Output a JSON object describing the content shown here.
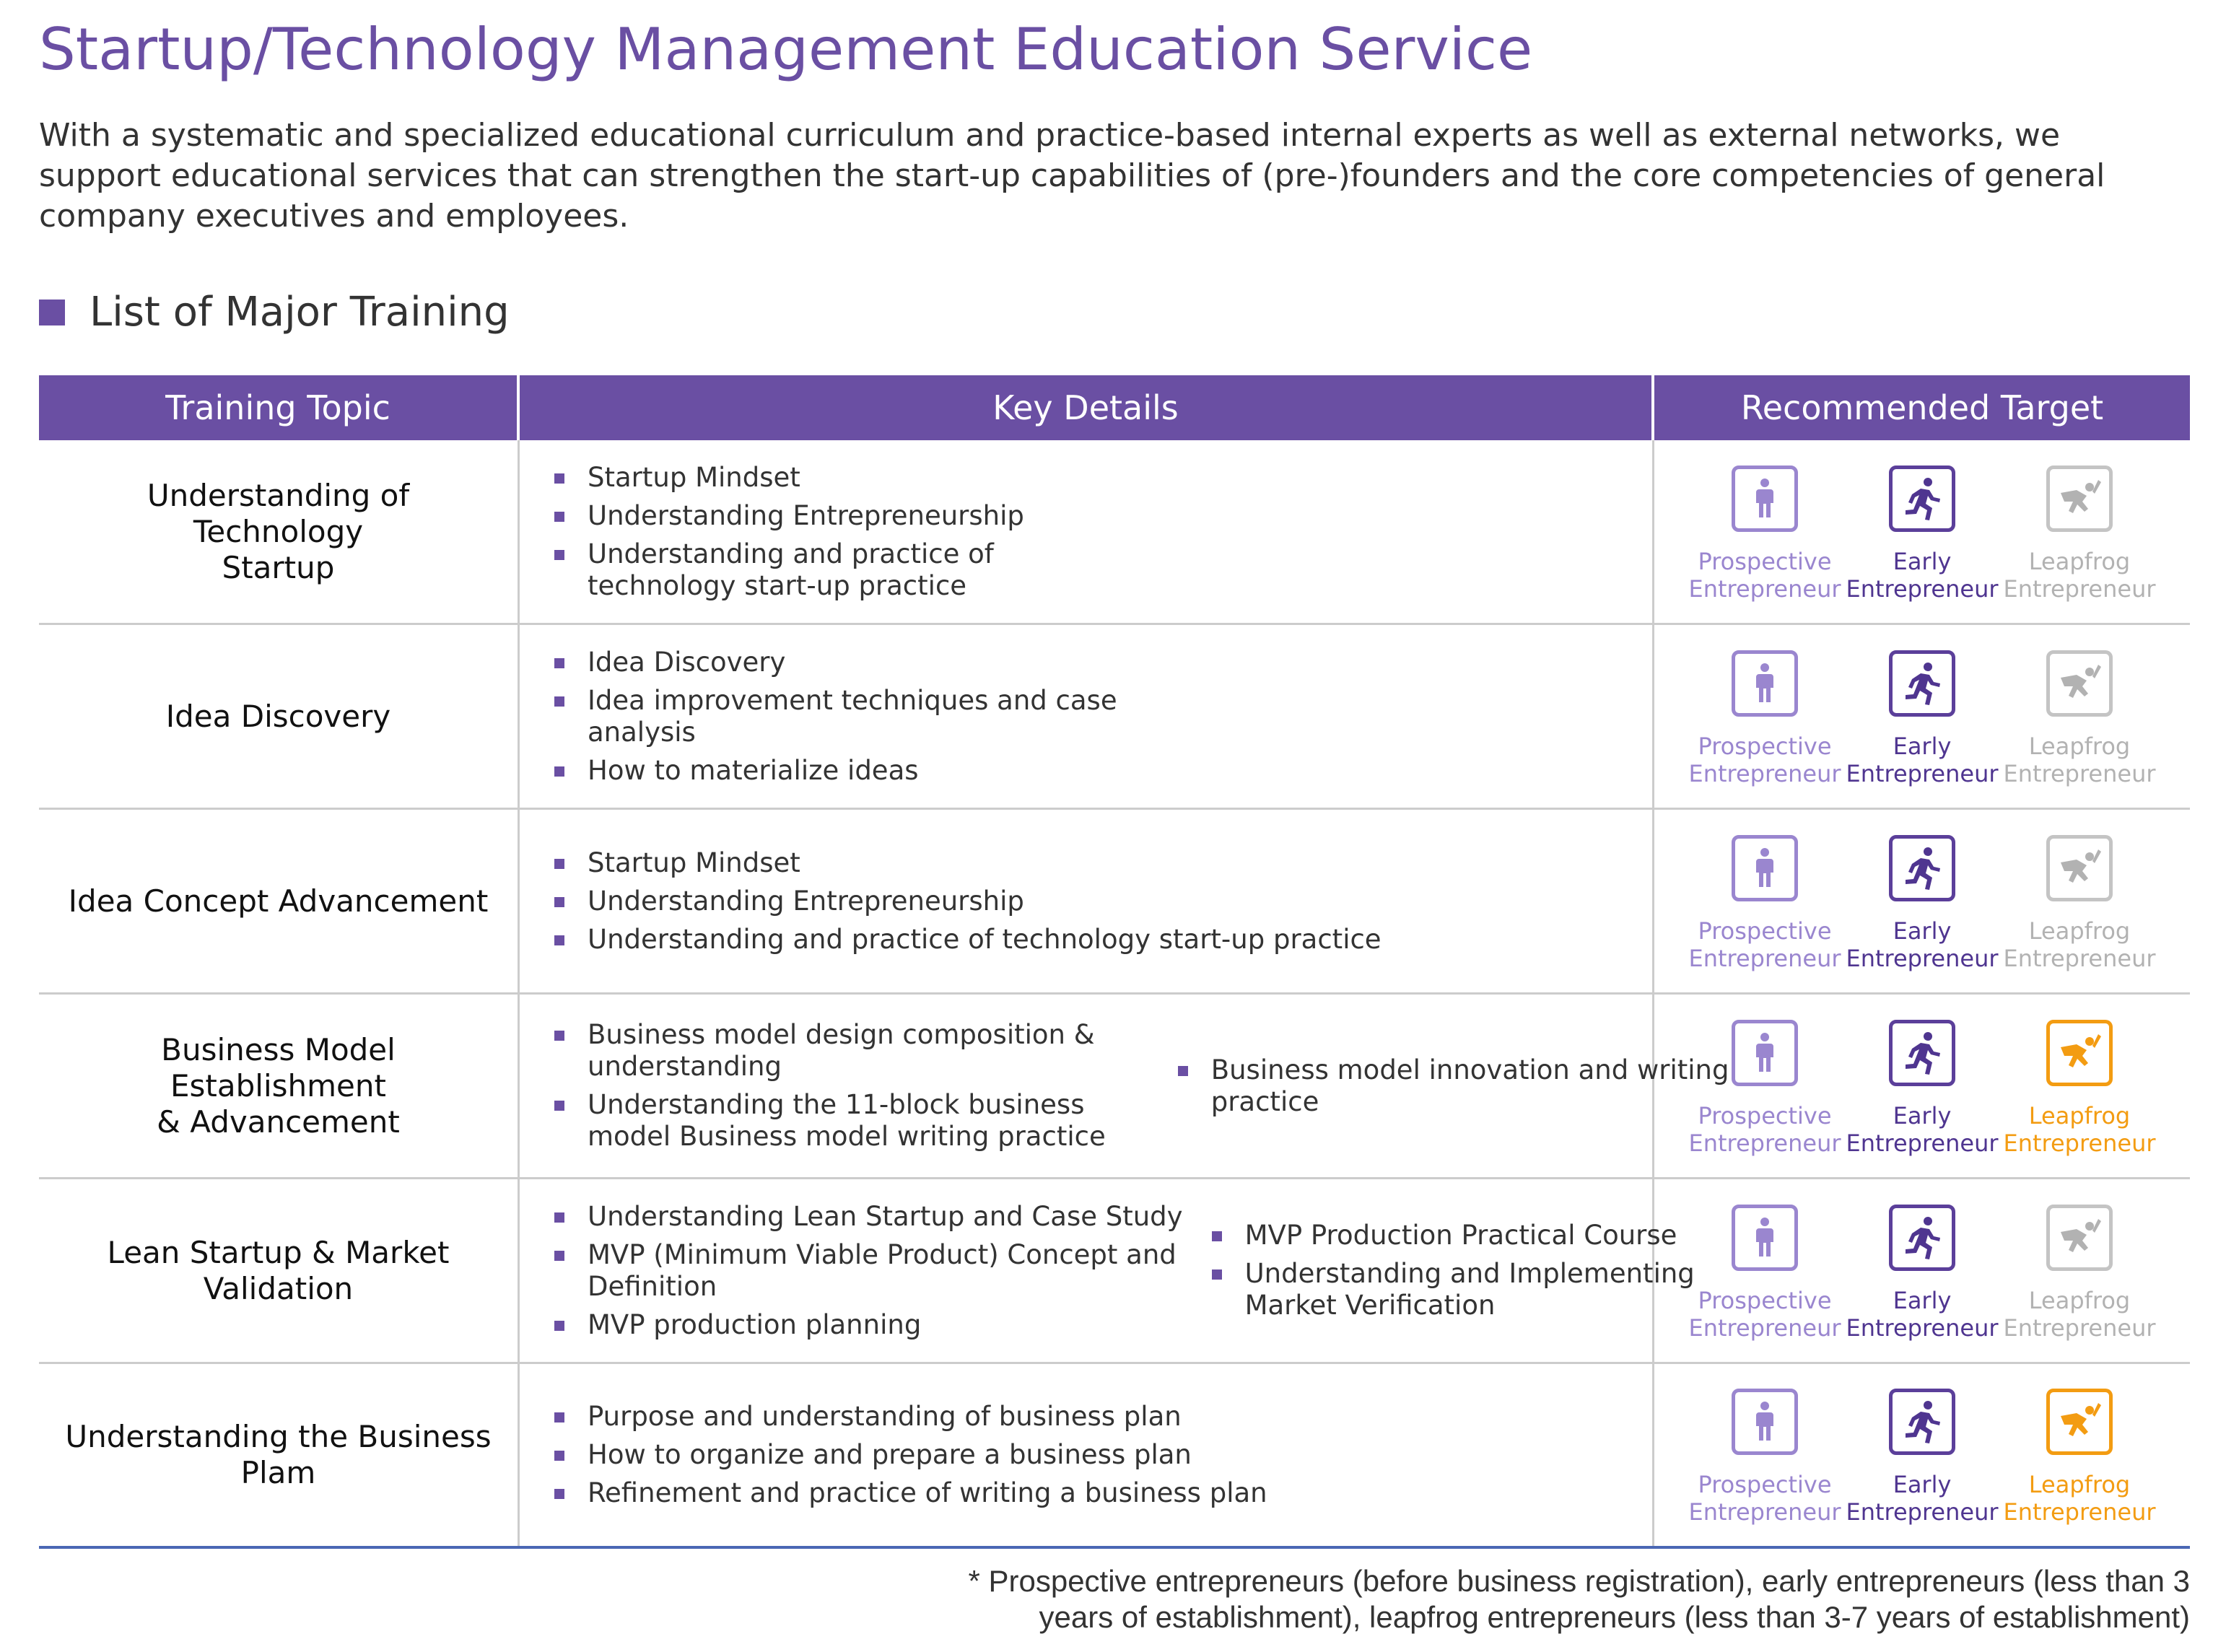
{
  "title": "Startup/Technology Management Education Service",
  "intro_lines": [
    "With a systematic and specialized educational curriculum and practice-based internal experts as well as external networks, we",
    "support educational services that can strengthen the start-up capabilities of (pre-)founders and the core competencies of general",
    "company executives and employees."
  ],
  "section_heading": "List of Major Training",
  "table": {
    "headers": [
      "Training Topic",
      "Key Details",
      "Recommended Target"
    ],
    "target_labels": {
      "prospective": [
        "Prospective",
        "Entrepreneur"
      ],
      "early": [
        "Early",
        "Entrepreneur"
      ],
      "leapfrog": [
        "Leapfrog",
        "Entrepreneur"
      ]
    },
    "target_icons": {
      "prospective": "standing-person-icon",
      "early": "running-person-icon",
      "leapfrog": "flying-hero-icon"
    },
    "colors": {
      "header_bg": "#6a4fa3",
      "prospective": "#9a86cf",
      "early": "#4f3590",
      "leapfrog_active": "#f39c12",
      "leapfrog_inactive": "#b2b2b2"
    },
    "rows": [
      {
        "topic": [
          "Understanding of Technology",
          "Startup"
        ],
        "details": [
          [
            [
              "Startup Mindset"
            ],
            [
              "Understanding Entrepreneurship"
            ],
            [
              "Understanding and practice of",
              "technology start-up practice"
            ]
          ]
        ],
        "leapfrog_active": false
      },
      {
        "topic": [
          "Idea Discovery"
        ],
        "details": [
          [
            [
              "Idea Discovery"
            ],
            [
              "Idea improvement techniques and case",
              "analysis"
            ],
            [
              "How to materialize ideas"
            ]
          ]
        ],
        "leapfrog_active": false
      },
      {
        "topic": [
          "Idea Concept Advancement"
        ],
        "details": [
          [
            [
              "Startup Mindset"
            ],
            [
              "Understanding Entrepreneurship"
            ],
            [
              "Understanding and practice of technology start-up practice"
            ]
          ]
        ],
        "leapfrog_active": false
      },
      {
        "topic": [
          "Business Model Establishment",
          "& Advancement"
        ],
        "details": [
          [
            [
              "Business model design composition &",
              "understanding"
            ],
            [
              "Understanding the 11-block business",
              "model Business model writing practice"
            ]
          ],
          [
            [
              "Business model innovation and writing",
              "practice"
            ]
          ]
        ],
        "leapfrog_active": true
      },
      {
        "topic": [
          "Lean Startup & Market",
          "Validation"
        ],
        "details": [
          [
            [
              "Understanding Lean Startup and Case Study"
            ],
            [
              "MVP (Minimum Viable Product) Concept and",
              "Definition"
            ],
            [
              "MVP production planning"
            ]
          ],
          [
            [
              "MVP Production Practical Course"
            ],
            [
              "Understanding and Implementing",
              "Market Verification"
            ]
          ]
        ],
        "leapfrog_active": false
      },
      {
        "topic": [
          "Understanding the Business",
          "Plam"
        ],
        "details": [
          [
            [
              "Purpose and understanding of business plan"
            ],
            [
              "How to organize and prepare a business plan"
            ],
            [
              "Refinement and practice of writing a business plan"
            ]
          ]
        ],
        "leapfrog_active": true
      }
    ]
  },
  "footnote_lines": [
    "* Prospective entrepreneurs (before business registration), early entrepreneurs (less than 3",
    "years of establishment), leapfrog entrepreneurs (less than 3-7 years of establishment)"
  ]
}
